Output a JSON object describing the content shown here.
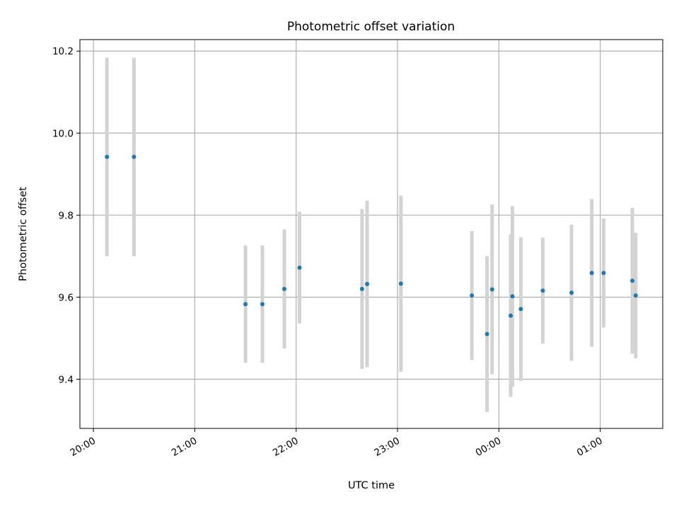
{
  "chart_data": {
    "type": "scatter",
    "title": "Photometric offset variation",
    "xlabel": "UTC time",
    "ylabel": "Photometric offset",
    "x_unit": "UTC clock time",
    "xlim": [
      "19:52",
      "01:37"
    ],
    "ylim": [
      9.28,
      10.228
    ],
    "x_ticks": [
      "20:00",
      "21:00",
      "22:00",
      "23:00",
      "00:00",
      "01:00"
    ],
    "y_ticks": [
      "9.4",
      "9.6",
      "9.8",
      "10.0",
      "10.2"
    ],
    "grid": true,
    "legend": "none",
    "colors": {
      "points": "#1f77b4",
      "error_bars": "#d3d3d3",
      "grid": "#b0b0b0"
    },
    "points": [
      {
        "t": "20:08",
        "y": 9.942,
        "err": 0.242
      },
      {
        "t": "20:24",
        "y": 9.942,
        "err": 0.242
      },
      {
        "t": "21:30",
        "y": 9.583,
        "err": 0.143
      },
      {
        "t": "21:40",
        "y": 9.583,
        "err": 0.143
      },
      {
        "t": "21:53",
        "y": 9.62,
        "err": 0.145
      },
      {
        "t": "22:02",
        "y": 9.672,
        "err": 0.136
      },
      {
        "t": "22:39",
        "y": 9.62,
        "err": 0.195
      },
      {
        "t": "22:42",
        "y": 9.632,
        "err": 0.203
      },
      {
        "t": "23:02",
        "y": 9.633,
        "err": 0.215
      },
      {
        "t": "23:44",
        "y": 9.604,
        "err": 0.157
      },
      {
        "t": "23:53",
        "y": 9.51,
        "err": 0.19
      },
      {
        "t": "23:56",
        "y": 9.619,
        "err": 0.207
      },
      {
        "t": "00:07",
        "y": 9.555,
        "err": 0.198
      },
      {
        "t": "00:08",
        "y": 9.602,
        "err": 0.22
      },
      {
        "t": "00:13",
        "y": 9.571,
        "err": 0.175
      },
      {
        "t": "00:26",
        "y": 9.616,
        "err": 0.129
      },
      {
        "t": "00:43",
        "y": 9.611,
        "err": 0.166
      },
      {
        "t": "00:55",
        "y": 9.659,
        "err": 0.18
      },
      {
        "t": "01:02",
        "y": 9.659,
        "err": 0.133
      },
      {
        "t": "01:19",
        "y": 9.64,
        "err": 0.178
      },
      {
        "t": "01:21",
        "y": 9.604,
        "err": 0.153
      }
    ]
  }
}
